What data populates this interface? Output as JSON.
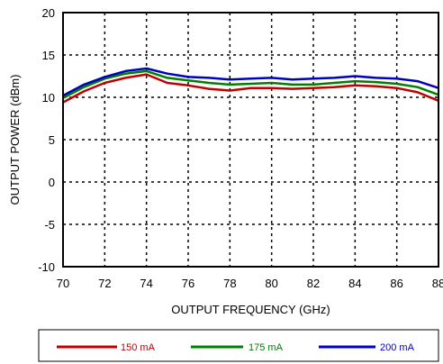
{
  "chart_data": {
    "type": "line",
    "xlabel": "OUTPUT FREQUENCY (GHz)",
    "ylabel": "OUTPUT POWER (dBm)",
    "xlim": [
      70,
      88
    ],
    "ylim": [
      -10,
      20
    ],
    "xticks": [
      70,
      72,
      74,
      76,
      78,
      80,
      82,
      84,
      86,
      88
    ],
    "yticks": [
      -10,
      -5,
      0,
      5,
      10,
      15,
      20
    ],
    "grid": "dotted",
    "legend_position": "bottom",
    "series": [
      {
        "name": "150 mA",
        "color": "#c00000",
        "x": [
          70,
          71,
          72,
          73,
          74,
          75,
          76,
          77,
          78,
          79,
          80,
          81,
          82,
          83,
          84,
          85,
          86,
          87,
          88
        ],
        "y": [
          9.4,
          10.7,
          11.7,
          12.3,
          12.7,
          11.7,
          11.4,
          11.0,
          10.8,
          11.1,
          11.1,
          11.0,
          11.1,
          11.2,
          11.4,
          11.3,
          11.1,
          10.6,
          9.6
        ]
      },
      {
        "name": "175 mA",
        "color": "#008000",
        "x": [
          70,
          71,
          72,
          73,
          74,
          75,
          76,
          77,
          78,
          79,
          80,
          81,
          82,
          83,
          84,
          85,
          86,
          87,
          88
        ],
        "y": [
          9.9,
          11.2,
          12.2,
          12.8,
          13.1,
          12.3,
          12.0,
          11.7,
          11.5,
          11.6,
          11.7,
          11.5,
          11.5,
          11.7,
          11.9,
          11.8,
          11.6,
          11.2,
          10.3
        ]
      },
      {
        "name": "200 mA",
        "color": "#0000c0",
        "x": [
          70,
          71,
          72,
          73,
          74,
          75,
          76,
          77,
          78,
          79,
          80,
          81,
          82,
          83,
          84,
          85,
          86,
          87,
          88
        ],
        "y": [
          10.2,
          11.5,
          12.4,
          13.1,
          13.4,
          12.8,
          12.4,
          12.3,
          12.1,
          12.2,
          12.3,
          12.1,
          12.2,
          12.3,
          12.5,
          12.3,
          12.2,
          11.9,
          11.1
        ]
      }
    ]
  }
}
